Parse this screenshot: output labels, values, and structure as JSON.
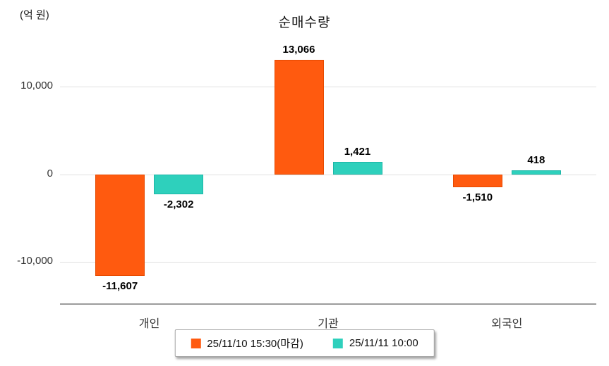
{
  "chart_data": {
    "type": "bar",
    "title": "순매수량",
    "y_unit": "(억 원)",
    "categories": [
      "개인",
      "기관",
      "외국인"
    ],
    "series": [
      {
        "name": "25/11/10 15:30(마감)",
        "color": "#ff5a0f",
        "border": "#e64a00",
        "values": [
          -11607,
          13066,
          -1510
        ]
      },
      {
        "name": "25/11/11 10:00",
        "color": "#2ed0bc",
        "border": "#1db6a7",
        "values": [
          -2302,
          1421,
          418
        ]
      }
    ],
    "yticks": [
      10000,
      0,
      -10000
    ],
    "ylim": [
      -14800,
      15450
    ],
    "grid": true,
    "legend_position": "bottom"
  }
}
